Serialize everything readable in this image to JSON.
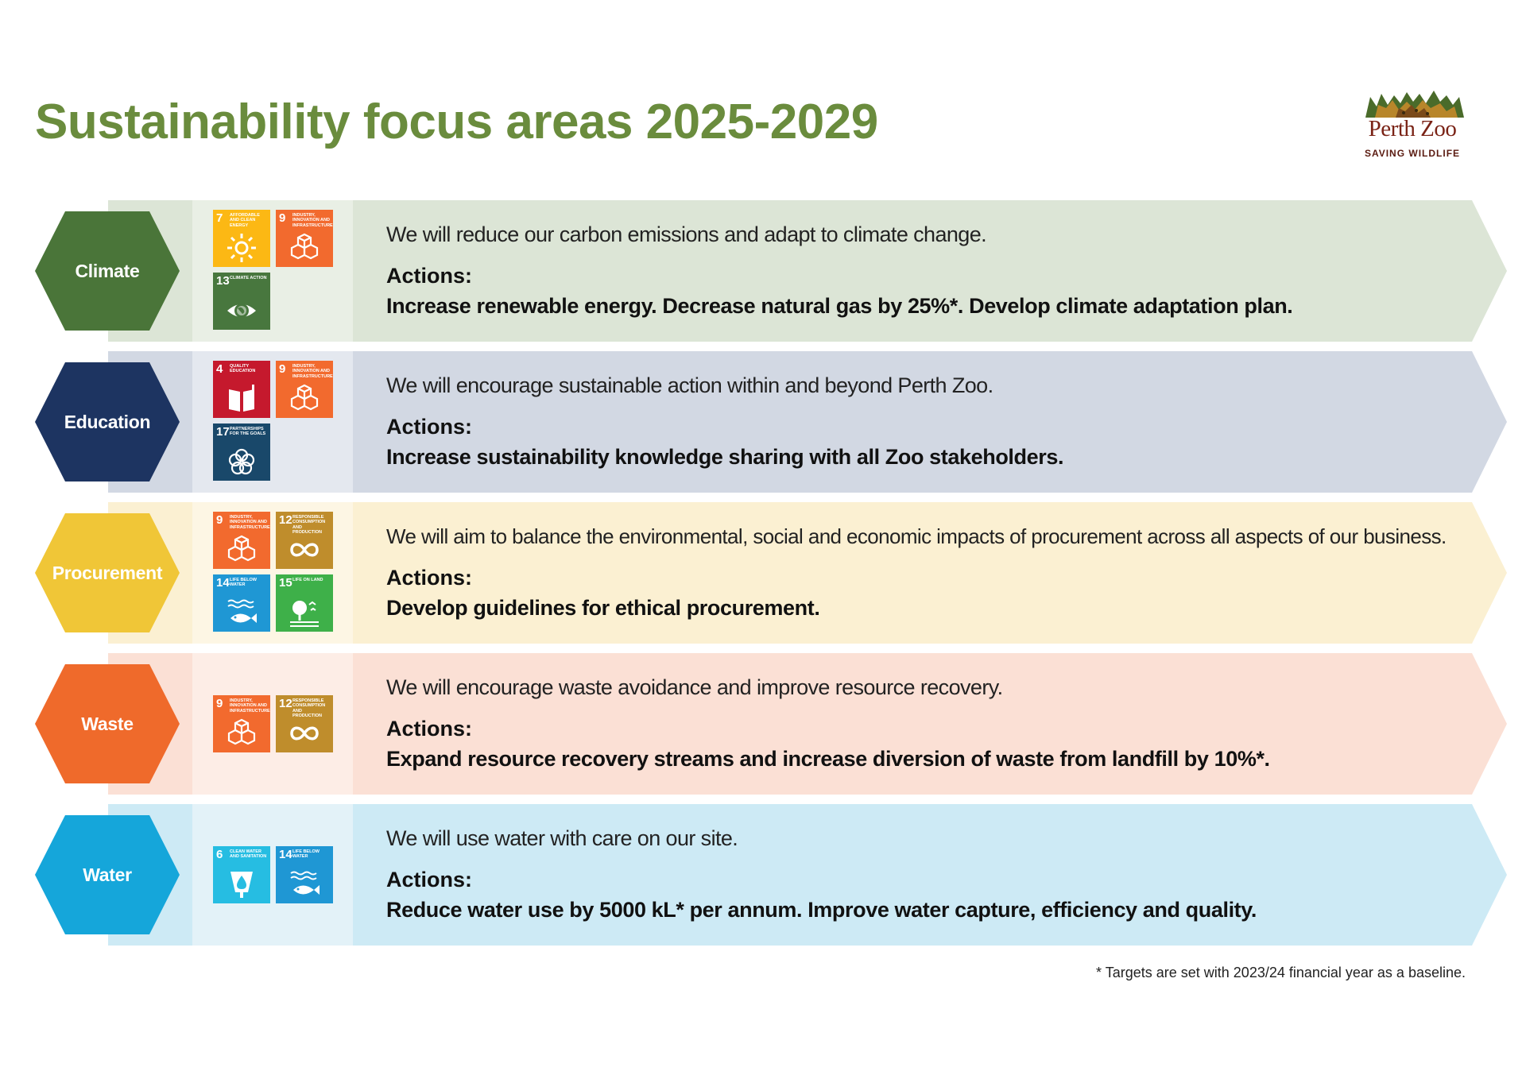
{
  "header": {
    "title": "Sustainability focus areas 2025-2029",
    "logo": {
      "name": "Perth Zoo",
      "tagline": "SAVING WILDLIFE"
    }
  },
  "rows": [
    {
      "label": "Climate",
      "colors": {
        "hex": "#4a7539",
        "band": "#dce5d6",
        "iconPanel": "#e9efe5"
      },
      "goal": "We will reduce our carbon emissions and adapt to climate change.",
      "actions_label": "Actions:",
      "actions": "Increase renewable energy. Decrease natural gas by 25%*. Develop climate adaptation plan.",
      "sdgs": [
        {
          "number": "7",
          "caption": "AFFORDABLE AND CLEAN ENERGY",
          "color": "#fcb814",
          "icon": "sun-icon"
        },
        {
          "number": "9",
          "caption": "INDUSTRY, INNOVATION AND INFRASTRUCTURE",
          "color": "#f26a2e",
          "icon": "cubes-icon"
        },
        {
          "number": "13",
          "caption": "CLIMATE ACTION",
          "color": "#48773e",
          "icon": "eye-globe-icon"
        }
      ]
    },
    {
      "label": "Education",
      "colors": {
        "hex": "#1d3461",
        "band": "#d2d8e3",
        "iconPanel": "#e4e8ef"
      },
      "goal": "We will encourage sustainable action within and beyond Perth Zoo.",
      "actions_label": "Actions:",
      "actions": "Increase sustainability knowledge sharing with all Zoo stakeholders.",
      "sdgs": [
        {
          "number": "4",
          "caption": "QUALITY EDUCATION",
          "color": "#c5192d",
          "icon": "book-icon"
        },
        {
          "number": "9",
          "caption": "INDUSTRY, INNOVATION AND INFRASTRUCTURE",
          "color": "#f26a2e",
          "icon": "cubes-icon"
        },
        {
          "number": "17",
          "caption": "PARTNERSHIPS FOR THE GOALS",
          "color": "#19486a",
          "icon": "flower-icon"
        }
      ]
    },
    {
      "label": "Procurement",
      "colors": {
        "hex": "#f0c637",
        "band": "#fbf0d2",
        "iconPanel": "#fdf6e4"
      },
      "goal": "We will aim to balance the environmental, social and economic impacts of procurement across all aspects of our business.",
      "actions_label": "Actions:",
      "actions": "Develop guidelines for ethical procurement.",
      "sdgs": [
        {
          "number": "9",
          "caption": "INDUSTRY, INNOVATION AND INFRASTRUCTURE",
          "color": "#f26a2e",
          "icon": "cubes-icon"
        },
        {
          "number": "12",
          "caption": "RESPONSIBLE CONSUMPTION AND PRODUCTION",
          "color": "#bf8d2c",
          "icon": "infinity-icon"
        },
        {
          "number": "14",
          "caption": "LIFE BELOW WATER",
          "color": "#1f97d4",
          "icon": "fish-icon"
        },
        {
          "number": "15",
          "caption": "LIFE ON LAND",
          "color": "#3eb049",
          "icon": "tree-icon"
        }
      ]
    },
    {
      "label": "Waste",
      "colors": {
        "hex": "#ef6a2b",
        "band": "#fbe0d5",
        "iconPanel": "#fdede6"
      },
      "goal": "We will encourage waste avoidance and improve resource recovery.",
      "actions_label": "Actions:",
      "actions": "Expand resource recovery streams and increase diversion of waste from landfill by 10%*.",
      "sdgs": [
        {
          "number": "9",
          "caption": "INDUSTRY, INNOVATION AND INFRASTRUCTURE",
          "color": "#f26a2e",
          "icon": "cubes-icon"
        },
        {
          "number": "12",
          "caption": "RESPONSIBLE CONSUMPTION AND PRODUCTION",
          "color": "#bf8d2c",
          "icon": "infinity-icon"
        }
      ]
    },
    {
      "label": "Water",
      "colors": {
        "hex": "#15a6da",
        "band": "#cdeaf5",
        "iconPanel": "#e3f2f8"
      },
      "goal": "We will use water with care on our site.",
      "actions_label": "Actions:",
      "actions": "Reduce water use by 5000 kL* per annum. Improve water capture, efficiency and quality.",
      "sdgs": [
        {
          "number": "6",
          "caption": "CLEAN WATER AND SANITATION",
          "color": "#26bde2",
          "icon": "water-drop-icon"
        },
        {
          "number": "14",
          "caption": "LIFE BELOW WATER",
          "color": "#1f97d4",
          "icon": "fish-icon"
        }
      ]
    }
  ],
  "footnote": "* Targets are set with 2023/24 financial year as a baseline."
}
